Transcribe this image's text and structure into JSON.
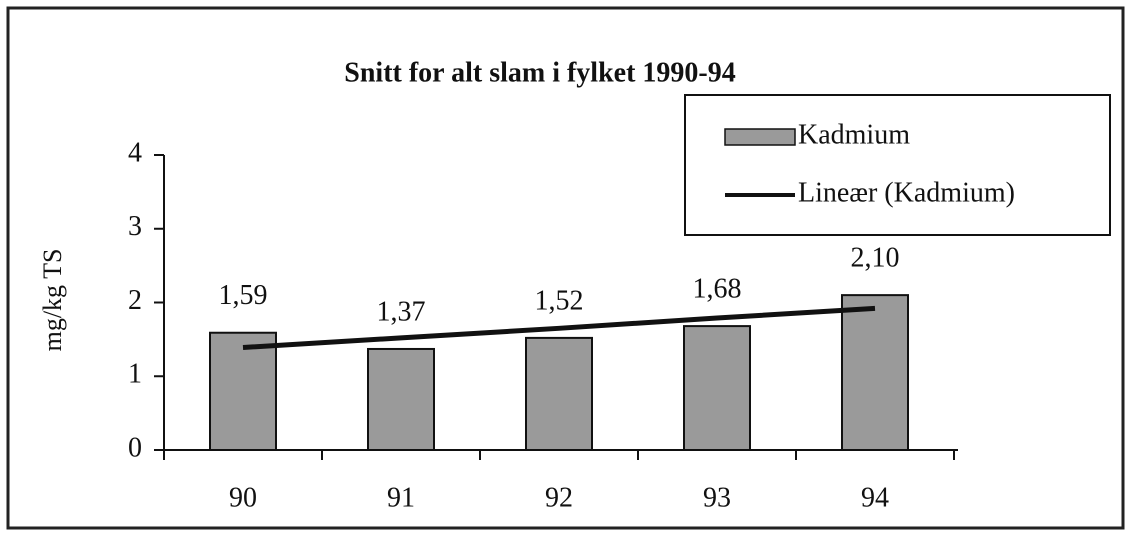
{
  "chart_data": {
    "type": "bar",
    "title": "Snitt for alt slam i fylket 1990-94",
    "y_label": "mg/kg TS",
    "categories": [
      "90",
      "91",
      "92",
      "93",
      "94"
    ],
    "series": [
      {
        "name": "Kadmium",
        "type": "bar",
        "color": "#9a9a9a",
        "values": [
          1.59,
          1.37,
          1.52,
          1.68,
          2.1
        ],
        "value_labels": [
          "1,59",
          "1,37",
          "1,52",
          "1,68",
          "2,10"
        ]
      },
      {
        "name": "Lineær (Kadmium)",
        "type": "line",
        "color": "#111111",
        "values": [
          1.39,
          1.52,
          1.65,
          1.79,
          1.92
        ]
      }
    ],
    "ylim": [
      0,
      4
    ],
    "yticks": [
      0,
      1,
      2,
      3,
      4
    ],
    "legend": "top-right"
  }
}
